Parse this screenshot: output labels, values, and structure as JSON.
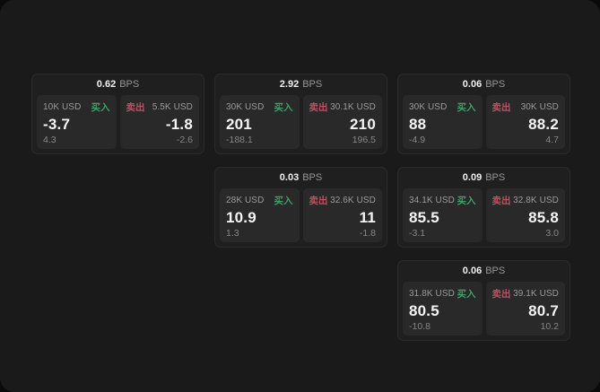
{
  "labels": {
    "bps_unit": "BPS",
    "buy": "买入",
    "sell": "卖出"
  },
  "colors": {
    "page_background": "#0a0a0a",
    "panel_background": "#1a1a1a",
    "card_background": "#1f1f1f",
    "tile_background": "#292929",
    "buy_green": "#3f9e67",
    "sell_red": "#bf4f63",
    "text_primary": "#f5f5f5",
    "text_secondary": "#9a9a9a"
  },
  "cards": [
    {
      "bps": "0.62",
      "buy": {
        "amount": "10K USD",
        "price": "-3.7",
        "sub": "4.3"
      },
      "sell": {
        "amount": "5.5K USD",
        "price": "-1.8",
        "sub": "-2.6"
      }
    },
    {
      "bps": "2.92",
      "buy": {
        "amount": "30K USD",
        "price": "201",
        "sub": "-188.1"
      },
      "sell": {
        "amount": "30.1K USD",
        "price": "210",
        "sub": "196.5"
      }
    },
    {
      "bps": "0.06",
      "buy": {
        "amount": "30K USD",
        "price": "88",
        "sub": "-4.9"
      },
      "sell": {
        "amount": "30K USD",
        "price": "88.2",
        "sub": "4.7"
      }
    },
    {
      "bps": "0.03",
      "buy": {
        "amount": "28K USD",
        "price": "10.9",
        "sub": "1.3"
      },
      "sell": {
        "amount": "32.6K USD",
        "price": "11",
        "sub": "-1.8"
      }
    },
    {
      "bps": "0.09",
      "buy": {
        "amount": "34.1K USD",
        "price": "85.5",
        "sub": "-3.1"
      },
      "sell": {
        "amount": "32.8K USD",
        "price": "85.8",
        "sub": "3.0"
      }
    },
    {
      "bps": "0.06",
      "buy": {
        "amount": "31.8K USD",
        "price": "80.5",
        "sub": "-10.8"
      },
      "sell": {
        "amount": "39.1K USD",
        "price": "80.7",
        "sub": "10.2"
      }
    }
  ]
}
